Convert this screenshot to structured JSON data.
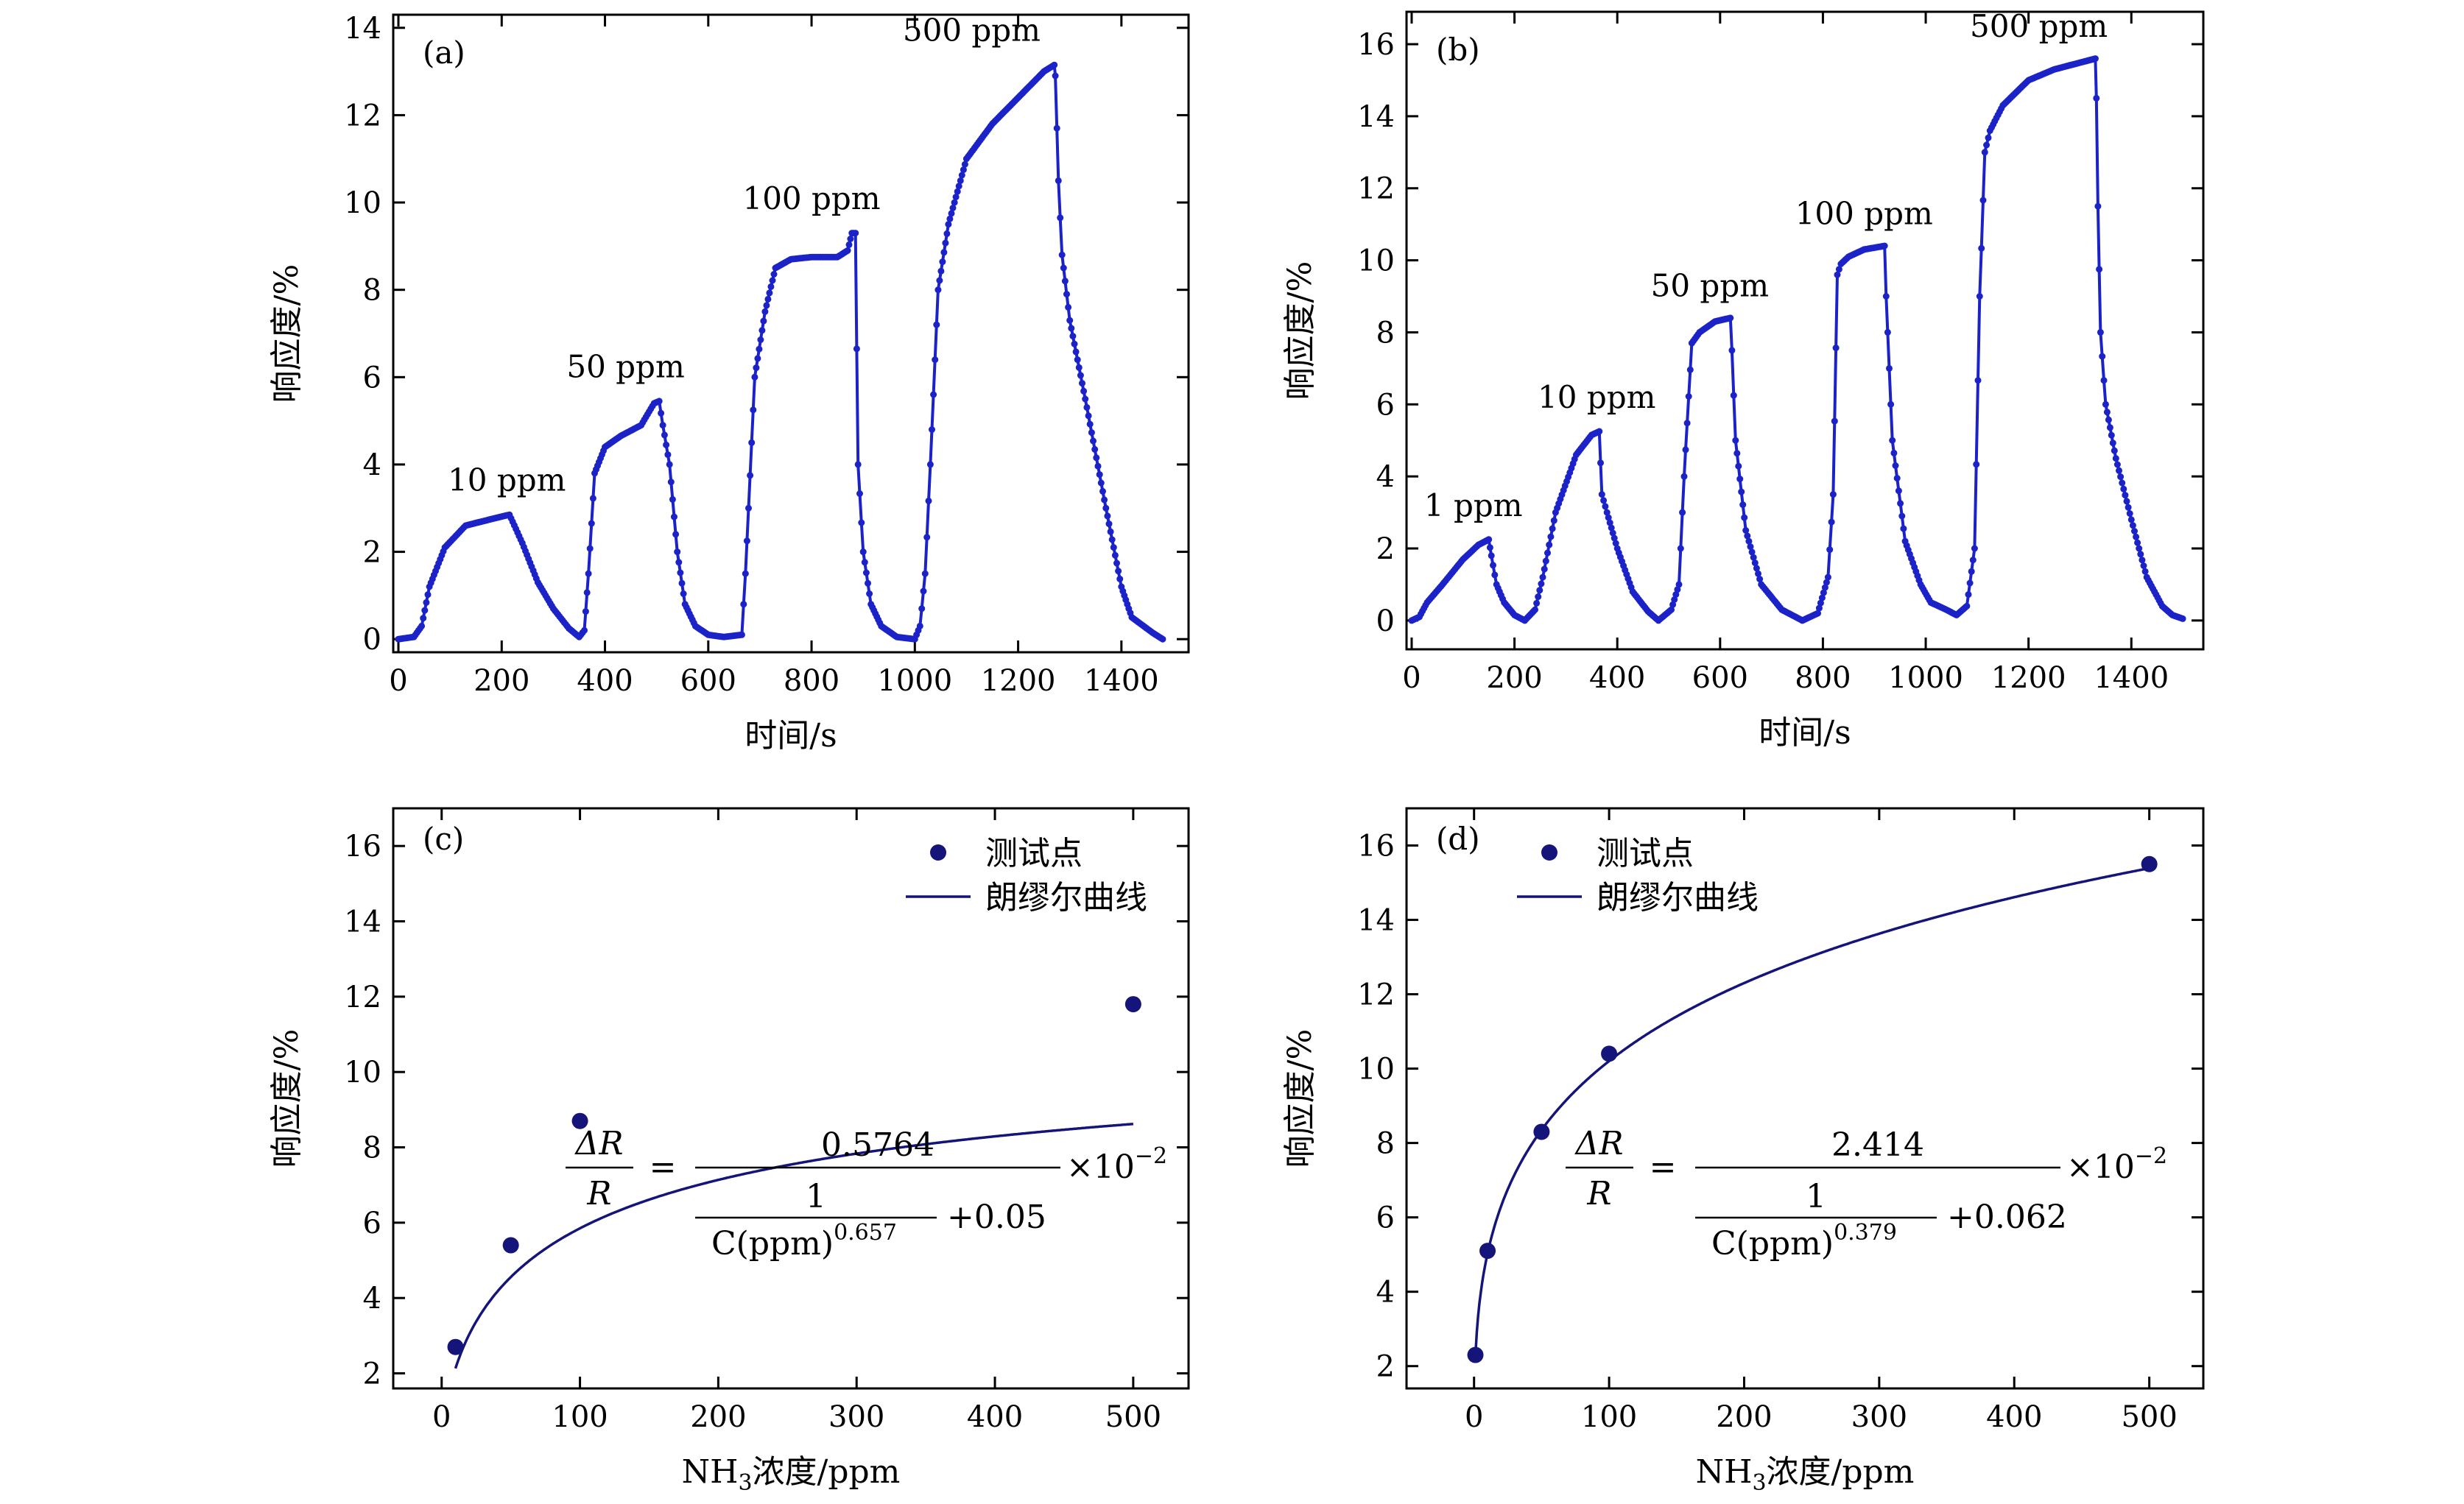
{
  "colors": {
    "series": "#1a22c8",
    "fit": "#14147a",
    "points": "#14147a",
    "axis": "#000000"
  },
  "chart_data": [
    {
      "id": "a",
      "type": "line",
      "panel_label": "(a)",
      "xlabel": "时间/s",
      "ylabel": "响应度/%",
      "xlim": [
        -10,
        1530
      ],
      "ylim": [
        -0.3,
        14.3
      ],
      "xticks": [
        0,
        200,
        400,
        600,
        800,
        1000,
        1200,
        1400
      ],
      "yticks": [
        0,
        2,
        4,
        6,
        8,
        10,
        12,
        14
      ],
      "series": [
        {
          "name": "response",
          "x": [
            0,
            30,
            45,
            60,
            90,
            130,
            180,
            215,
            240,
            270,
            300,
            330,
            350,
            360,
            368,
            380,
            400,
            430,
            470,
            495,
            505,
            512,
            525,
            540,
            555,
            575,
            600,
            630,
            665,
            672,
            690,
            710,
            730,
            760,
            800,
            850,
            870,
            878,
            885,
            890,
            900,
            915,
            935,
            965,
            1000,
            1010,
            1020,
            1030,
            1045,
            1065,
            1100,
            1150,
            1200,
            1250,
            1270,
            1272,
            1278,
            1285,
            1300,
            1330,
            1370,
            1400,
            1420,
            1460,
            1480
          ],
          "y": [
            0.0,
            0.05,
            0.3,
            1.2,
            2.1,
            2.6,
            2.75,
            2.85,
            2.2,
            1.3,
            0.7,
            0.25,
            0.05,
            0.2,
            1.5,
            3.8,
            4.4,
            4.65,
            4.9,
            5.4,
            5.45,
            4.9,
            4.0,
            2.0,
            0.8,
            0.3,
            0.1,
            0.05,
            0.1,
            1.5,
            6.0,
            7.5,
            8.5,
            8.7,
            8.75,
            8.75,
            8.9,
            9.3,
            9.3,
            4.0,
            2.0,
            0.8,
            0.3,
            0.05,
            0.0,
            0.3,
            1.5,
            4.0,
            8.0,
            9.5,
            11.0,
            11.8,
            12.4,
            13.0,
            13.15,
            12.9,
            10.5,
            8.8,
            7.3,
            5.5,
            3.0,
            1.2,
            0.5,
            0.15,
            0.0
          ]
        }
      ],
      "annotations": [
        {
          "text": "10 ppm",
          "x": 210,
          "y": 3.4
        },
        {
          "text": "50 ppm",
          "x": 440,
          "y": 6.0
        },
        {
          "text": "100 ppm",
          "x": 800,
          "y": 9.85
        },
        {
          "text": "500 ppm",
          "x": 1110,
          "y": 13.7
        }
      ]
    },
    {
      "id": "b",
      "type": "line",
      "panel_label": "(b)",
      "xlabel": "时间/s",
      "ylabel": "响应度/%",
      "xlim": [
        -10,
        1540
      ],
      "ylim": [
        -0.8,
        16.9
      ],
      "xticks": [
        0,
        200,
        400,
        600,
        800,
        1000,
        1200,
        1400
      ],
      "yticks": [
        0,
        2,
        4,
        6,
        8,
        10,
        12,
        14,
        16
      ],
      "series": [
        {
          "name": "response",
          "x": [
            0,
            15,
            30,
            60,
            100,
            130,
            150,
            155,
            165,
            180,
            200,
            220,
            240,
            255,
            280,
            320,
            350,
            365,
            370,
            380,
            400,
            430,
            460,
            480,
            505,
            520,
            530,
            545,
            560,
            590,
            620,
            623,
            630,
            650,
            680,
            720,
            760,
            790,
            810,
            820,
            828,
            835,
            850,
            880,
            920,
            923,
            935,
            960,
            990,
            1010,
            1040,
            1060,
            1080,
            1095,
            1105,
            1115,
            1125,
            1150,
            1200,
            1250,
            1330,
            1332,
            1335,
            1340,
            1350,
            1370,
            1400,
            1430,
            1460,
            1480,
            1500
          ],
          "y": [
            0.0,
            0.1,
            0.5,
            1.0,
            1.7,
            2.1,
            2.25,
            1.8,
            1.0,
            0.5,
            0.15,
            0.0,
            0.3,
            1.2,
            3.0,
            4.6,
            5.15,
            5.25,
            3.5,
            3.0,
            2.0,
            0.8,
            0.25,
            0.0,
            0.3,
            1.0,
            4.0,
            7.7,
            8.0,
            8.3,
            8.4,
            7.5,
            5.0,
            2.5,
            1.0,
            0.3,
            0.0,
            0.2,
            1.2,
            3.5,
            9.6,
            9.9,
            10.1,
            10.3,
            10.4,
            9.0,
            5.0,
            2.2,
            1.0,
            0.5,
            0.3,
            0.15,
            0.4,
            2.0,
            9.0,
            13.0,
            13.6,
            14.3,
            15.0,
            15.3,
            15.6,
            14.5,
            11.5,
            8.0,
            6.0,
            4.5,
            2.8,
            1.2,
            0.4,
            0.15,
            0.05
          ]
        }
      ],
      "annotations": [
        {
          "text": "1 ppm",
          "x": 120,
          "y": 2.9
        },
        {
          "text": "10 ppm",
          "x": 360,
          "y": 5.9
        },
        {
          "text": "50 ppm",
          "x": 580,
          "y": 9.0
        },
        {
          "text": "100 ppm",
          "x": 880,
          "y": 11.0
        },
        {
          "text": "500 ppm",
          "x": 1220,
          "y": 16.2
        }
      ]
    },
    {
      "id": "c",
      "type": "scatter",
      "panel_label": "(c)",
      "xlabel_main": "NH",
      "xlabel_sub": "3",
      "xlabel_rest": "浓度/ppm",
      "ylabel": "响应度/%",
      "xlim": [
        -35,
        540
      ],
      "ylim": [
        1.6,
        17
      ],
      "xticks": [
        0,
        100,
        200,
        300,
        400,
        500
      ],
      "yticks": [
        2,
        4,
        6,
        8,
        10,
        12,
        14,
        16
      ],
      "points": {
        "name": "测试点",
        "x": [
          10,
          50,
          100,
          500
        ],
        "y": [
          2.7,
          5.4,
          8.7,
          11.8
        ]
      },
      "fit": {
        "name": "朗缪尔曲线",
        "a": 0.5764,
        "b": 0.657,
        "c": 0.05,
        "x_range": [
          10,
          500
        ]
      },
      "equation": {
        "lhs_num": "ΔR",
        "lhs_den": "R",
        "eq": "=",
        "num": "0.5764",
        "den_one": "1",
        "den_c": "C(ppm)",
        "den_exp": "0.657",
        "plus": "+0.05",
        "times": "×10",
        "times_exp": "−2"
      },
      "legend": [
        "测试点",
        "朗缪尔曲线"
      ]
    },
    {
      "id": "d",
      "type": "scatter",
      "panel_label": "(d)",
      "xlabel_main": "NH",
      "xlabel_sub": "3",
      "xlabel_rest": "浓度/ppm",
      "ylabel": "响应度/%",
      "xlim": [
        -50,
        540
      ],
      "ylim": [
        1.4,
        17
      ],
      "xticks": [
        0,
        100,
        200,
        300,
        400,
        500
      ],
      "yticks": [
        2,
        4,
        6,
        8,
        10,
        12,
        14,
        16
      ],
      "points": {
        "name": "测试点",
        "x": [
          1,
          10,
          50,
          100,
          500
        ],
        "y": [
          2.3,
          5.1,
          8.3,
          10.4,
          15.5
        ]
      },
      "fit": {
        "name": "朗缪尔曲线",
        "a": 2.414,
        "b": 0.379,
        "c": 0.062,
        "x_range": [
          1,
          500
        ]
      },
      "equation": {
        "lhs_num": "ΔR",
        "lhs_den": "R",
        "eq": "=",
        "num": "2.414",
        "den_one": "1",
        "den_c": "C(ppm)",
        "den_exp": "0.379",
        "plus": "+0.062",
        "times": "×10",
        "times_exp": "−2"
      },
      "legend": [
        "测试点",
        "朗缪尔曲线"
      ]
    }
  ]
}
